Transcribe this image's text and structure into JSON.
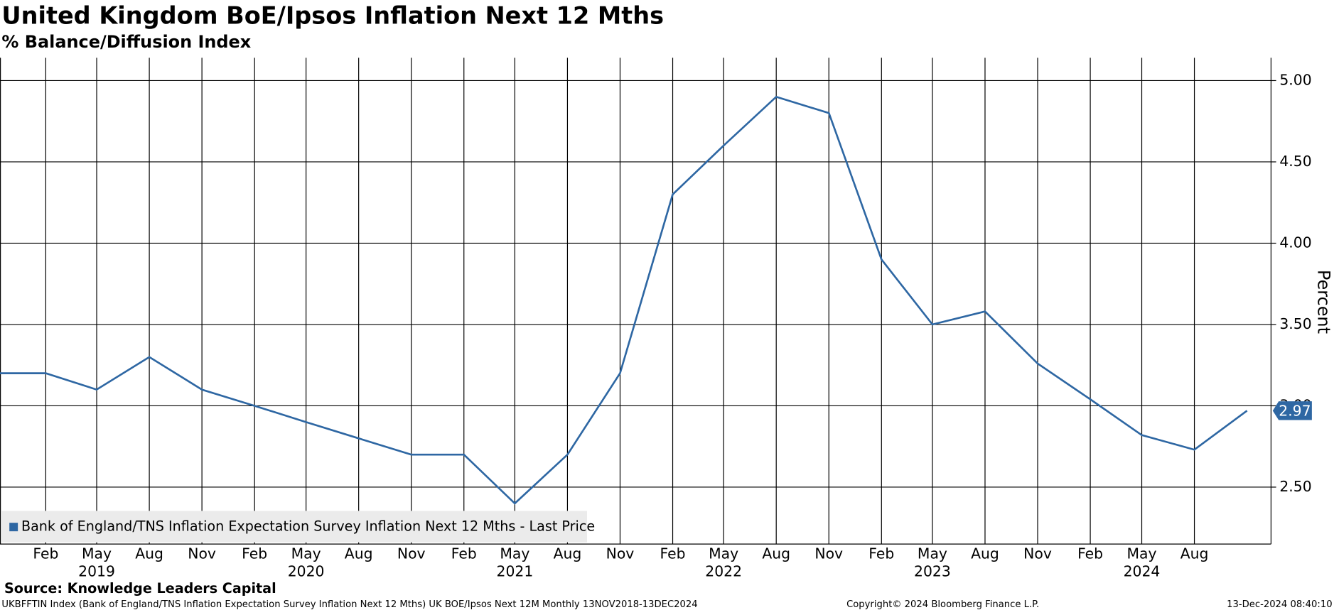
{
  "chart_data": {
    "type": "line",
    "title": "United Kingdom BoE/Ipsos Inflation Next 12 Mths",
    "subtitle": "% Balance/Diffusion Index",
    "y_label": "Percent",
    "x": [
      "2018-11",
      "2019-02",
      "2019-05",
      "2019-08",
      "2019-11",
      "2020-02",
      "2020-05",
      "2020-08",
      "2020-11",
      "2021-02",
      "2021-05",
      "2021-08",
      "2021-11",
      "2022-02",
      "2022-05",
      "2022-08",
      "2022-11",
      "2023-02",
      "2023-05",
      "2023-08",
      "2023-11",
      "2024-02",
      "2024-05",
      "2024-08",
      "2024-11"
    ],
    "series": [
      {
        "name": "Bank of England/TNS Inflation Expectation Survey Inflation Next 12 Mths - Last Price",
        "color": "#2e67a3",
        "values": [
          3.2,
          3.2,
          3.1,
          3.3,
          3.1,
          3.0,
          2.9,
          2.8,
          2.7,
          2.7,
          2.4,
          2.7,
          3.2,
          4.3,
          4.6,
          4.9,
          4.8,
          3.9,
          3.5,
          3.58,
          3.26,
          3.04,
          2.82,
          2.73,
          2.97
        ]
      }
    ],
    "xlim": [
      "2018-11-13",
      "2024-12-13"
    ],
    "xticks": [
      {
        "value": "2019-02",
        "label": "Feb"
      },
      {
        "value": "2019-05",
        "label": "May"
      },
      {
        "value": "2019-08",
        "label": "Aug"
      },
      {
        "value": "2019-11",
        "label": "Nov"
      },
      {
        "value": "2020-02",
        "label": "Feb"
      },
      {
        "value": "2020-05",
        "label": "May"
      },
      {
        "value": "2020-08",
        "label": "Aug"
      },
      {
        "value": "2020-11",
        "label": "Nov"
      },
      {
        "value": "2021-02",
        "label": "Feb"
      },
      {
        "value": "2021-05",
        "label": "May"
      },
      {
        "value": "2021-08",
        "label": "Aug"
      },
      {
        "value": "2021-11",
        "label": "Nov"
      },
      {
        "value": "2022-02",
        "label": "Feb"
      },
      {
        "value": "2022-05",
        "label": "May"
      },
      {
        "value": "2022-08",
        "label": "Aug"
      },
      {
        "value": "2022-11",
        "label": "Nov"
      },
      {
        "value": "2023-02",
        "label": "Feb"
      },
      {
        "value": "2023-05",
        "label": "May"
      },
      {
        "value": "2023-08",
        "label": "Aug"
      },
      {
        "value": "2023-11",
        "label": "Nov"
      },
      {
        "value": "2024-02",
        "label": "Feb"
      },
      {
        "value": "2024-05",
        "label": "May"
      },
      {
        "value": "2024-08",
        "label": "Aug"
      }
    ],
    "year_labels": [
      {
        "value": "2019-05",
        "label": "2019"
      },
      {
        "value": "2020-05",
        "label": "2020"
      },
      {
        "value": "2021-05",
        "label": "2021"
      },
      {
        "value": "2022-05",
        "label": "2022"
      },
      {
        "value": "2023-05",
        "label": "2023"
      },
      {
        "value": "2024-05",
        "label": "2024"
      }
    ],
    "ylim": [
      2.15,
      5.14
    ],
    "yticks": [
      {
        "value": 2.5,
        "label": "2.50"
      },
      {
        "value": 3,
        "label": "3.00"
      },
      {
        "value": 3.5,
        "label": "3.50"
      },
      {
        "value": 4,
        "label": "4.00"
      },
      {
        "value": 4.5,
        "label": "4.50"
      },
      {
        "value": 5,
        "label": "5.00"
      }
    ],
    "grid": true,
    "legend": "bottom-left",
    "source": "Source: Knowledge Leaders Capital",
    "footer_left": "UKBFFTIN Index (Bank of England/TNS Inflation Expectation Survey Inflation Next 12 Mths) UK BOE/Ipsos Next 12M  Monthly 13NOV2018-13DEC2024",
    "footer_center": "Copyright© 2024 Bloomberg Finance L.P.",
    "footer_right": "13-Dec-2024 08:40:10"
  }
}
